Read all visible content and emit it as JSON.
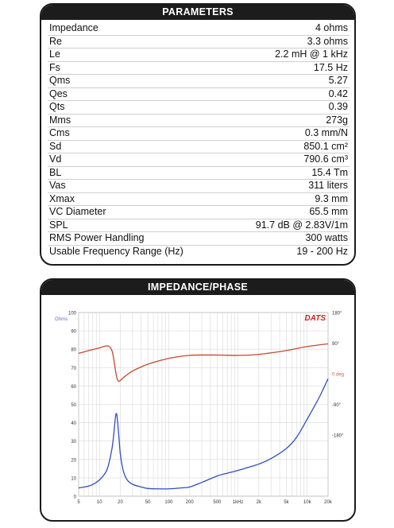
{
  "parameters": {
    "title": "PARAMETERS",
    "rows": [
      {
        "name": "Impedance",
        "value": "4 ohms"
      },
      {
        "name": "Re",
        "value": "3.3 ohms"
      },
      {
        "name": "Le",
        "value": "2.2 mH @ 1 kHz"
      },
      {
        "name": "Fs",
        "value": "17.5 Hz"
      },
      {
        "name": "Qms",
        "value": "5.27"
      },
      {
        "name": "Qes",
        "value": "0.42"
      },
      {
        "name": "Qts",
        "value": "0.39"
      },
      {
        "name": "Mms",
        "value": "273g"
      },
      {
        "name": "Cms",
        "value": "0.3 mm/N"
      },
      {
        "name": "Sd",
        "value": "850.1 cm²"
      },
      {
        "name": "Vd",
        "value": "790.6 cm³"
      },
      {
        "name": "BL",
        "value": "15.4 Tm"
      },
      {
        "name": "Vas",
        "value": "311 liters"
      },
      {
        "name": "Xmax",
        "value": "9.3 mm"
      },
      {
        "name": "VC Diameter",
        "value": "65.5 mm"
      },
      {
        "name": "SPL",
        "value": "91.7 dB @ 2.83V/1m"
      },
      {
        "name": "RMS Power Handling",
        "value": "300 watts"
      },
      {
        "name": "Usable Frequency Range (Hz)",
        "value": "19 - 200 Hz"
      }
    ]
  },
  "impedance_phase": {
    "title": "IMPEDANCE/PHASE",
    "brand": "DATS",
    "colors": {
      "impedance": "#2f4fc2",
      "phase": "#c44a2a",
      "grid": "#d8d8d8",
      "ohms_label": "#5a6fd8",
      "phase_label": "#d0603c"
    },
    "chart_data": {
      "type": "line",
      "x_scale": "log",
      "xlim": [
        5,
        20000
      ],
      "x_ticks": [
        {
          "value": 5,
          "label": "5"
        },
        {
          "value": 10,
          "label": "10"
        },
        {
          "value": 20,
          "label": "20"
        },
        {
          "value": 50,
          "label": "50"
        },
        {
          "value": 100,
          "label": "100"
        },
        {
          "value": 200,
          "label": "200"
        },
        {
          "value": 500,
          "label": "500"
        },
        {
          "value": 1000,
          "label": "1kHz"
        },
        {
          "value": 2000,
          "label": "2k"
        },
        {
          "value": 5000,
          "label": "5k"
        },
        {
          "value": 10000,
          "label": "10k"
        },
        {
          "value": 20000,
          "label": "20k"
        }
      ],
      "y_left": {
        "label": "Ohms",
        "ylim": [
          0,
          100
        ],
        "ticks": [
          0,
          10,
          20,
          30,
          40,
          50,
          60,
          70,
          80,
          90,
          100
        ]
      },
      "y_right": {
        "ylim": [
          -360,
          180
        ],
        "ticks": [
          {
            "value": 180,
            "label": "180°"
          },
          {
            "value": 90,
            "label": "90°"
          },
          {
            "value": 0,
            "label": "0 deg"
          },
          {
            "value": -90,
            "label": "-90°"
          },
          {
            "value": -180,
            "label": "-180°"
          }
        ]
      },
      "grid": true,
      "series": [
        {
          "axis": "left",
          "x": [
            5,
            7,
            9,
            11,
            13,
            15,
            16,
            17,
            17.5,
            18,
            19,
            20,
            22,
            25,
            30,
            40,
            50,
            70,
            100,
            150,
            200,
            300,
            500,
            700,
            1000,
            1500,
            2000,
            3000,
            5000,
            7000,
            10000,
            15000,
            20000
          ],
          "y": [
            4.5,
            5.5,
            7.5,
            10.5,
            15,
            25,
            33,
            43,
            45,
            43,
            33,
            23,
            14,
            9,
            6.5,
            5,
            4.2,
            4,
            4,
            4.5,
            5,
            7.5,
            11,
            12.5,
            14,
            16,
            17.5,
            20.5,
            26,
            32,
            42,
            54,
            64
          ]
        },
        {
          "axis": "right",
          "x": [
            5,
            7,
            10,
            13,
            15,
            16,
            17,
            18,
            19,
            20,
            22,
            25,
            30,
            40,
            50,
            70,
            100,
            200,
            500,
            1000,
            2000,
            5000,
            10000,
            20000
          ],
          "y": [
            60,
            68,
            76,
            82,
            70,
            45,
            10,
            -15,
            -22,
            -20,
            -12,
            -3,
            8,
            20,
            28,
            37,
            45,
            54,
            55,
            54,
            57,
            68,
            80,
            88
          ]
        }
      ]
    }
  }
}
